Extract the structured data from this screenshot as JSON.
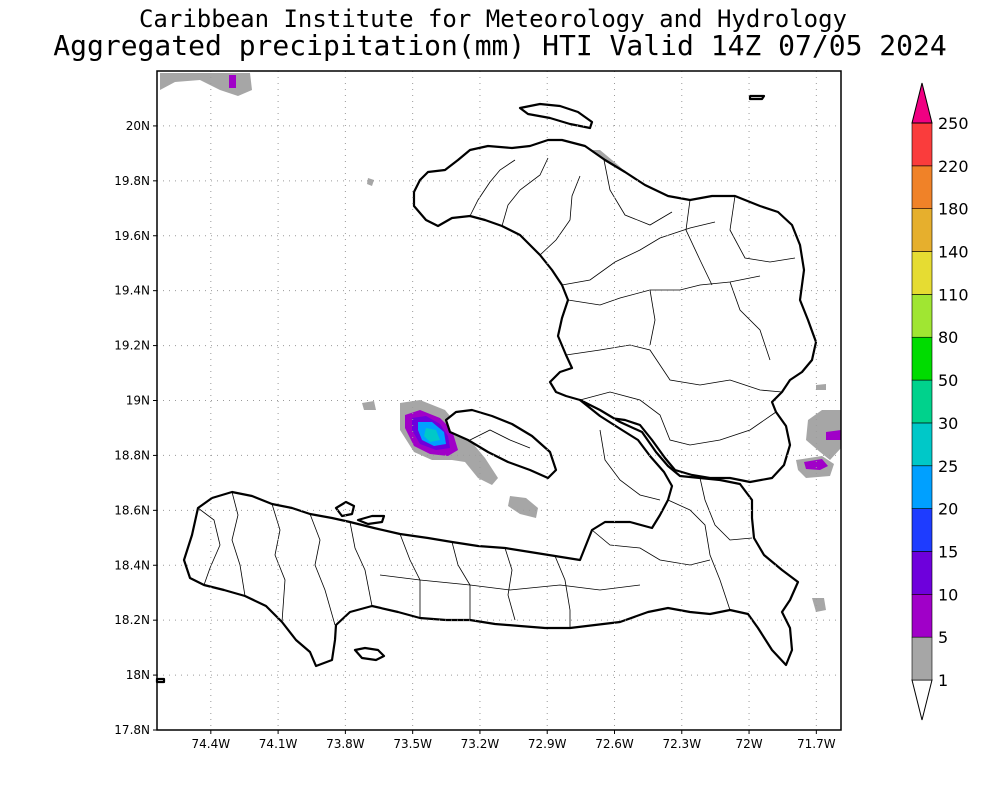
{
  "title": "Caribbean Institute for Meteorology and Hydrology",
  "subtitle": "Aggregated precipitation(mm) HTI Valid 14Z 07/05 2024",
  "map": {
    "lon_ticks": [
      "74.4W",
      "74.1W",
      "73.8W",
      "73.5W",
      "73.2W",
      "72.9W",
      "72.6W",
      "72.3W",
      "72W",
      "71.7W"
    ],
    "lat_ticks": [
      "20N",
      "19.8N",
      "19.6N",
      "19.4N",
      "19.2N",
      "19N",
      "18.8N",
      "18.6N",
      "18.4N",
      "18.2N",
      "18N",
      "17.8N"
    ],
    "lon_values": [
      -74.4,
      -74.1,
      -73.8,
      -73.5,
      -73.2,
      -72.9,
      -72.6,
      -72.3,
      -72.0,
      -71.7
    ],
    "lat_values": [
      20.0,
      19.8,
      19.6,
      19.4,
      19.2,
      19.0,
      18.8,
      18.6,
      18.4,
      18.2,
      18.0,
      17.8
    ],
    "grid": true,
    "land_color": "#ffffff",
    "coastline_color": "#000000"
  },
  "colorbar": {
    "levels": [
      "1",
      "5",
      "10",
      "15",
      "20",
      "25",
      "30",
      "50",
      "80",
      "110",
      "140",
      "180",
      "220",
      "250"
    ],
    "colors": [
      "#a6a6a6",
      "#a000c8",
      "#6e00dc",
      "#1e3cff",
      "#00a0ff",
      "#00c8c8",
      "#00d28c",
      "#00dc00",
      "#a0e632",
      "#e6dc32",
      "#e6af2d",
      "#f08228",
      "#fa3c3c",
      "#f00082"
    ],
    "units": "mm"
  }
}
